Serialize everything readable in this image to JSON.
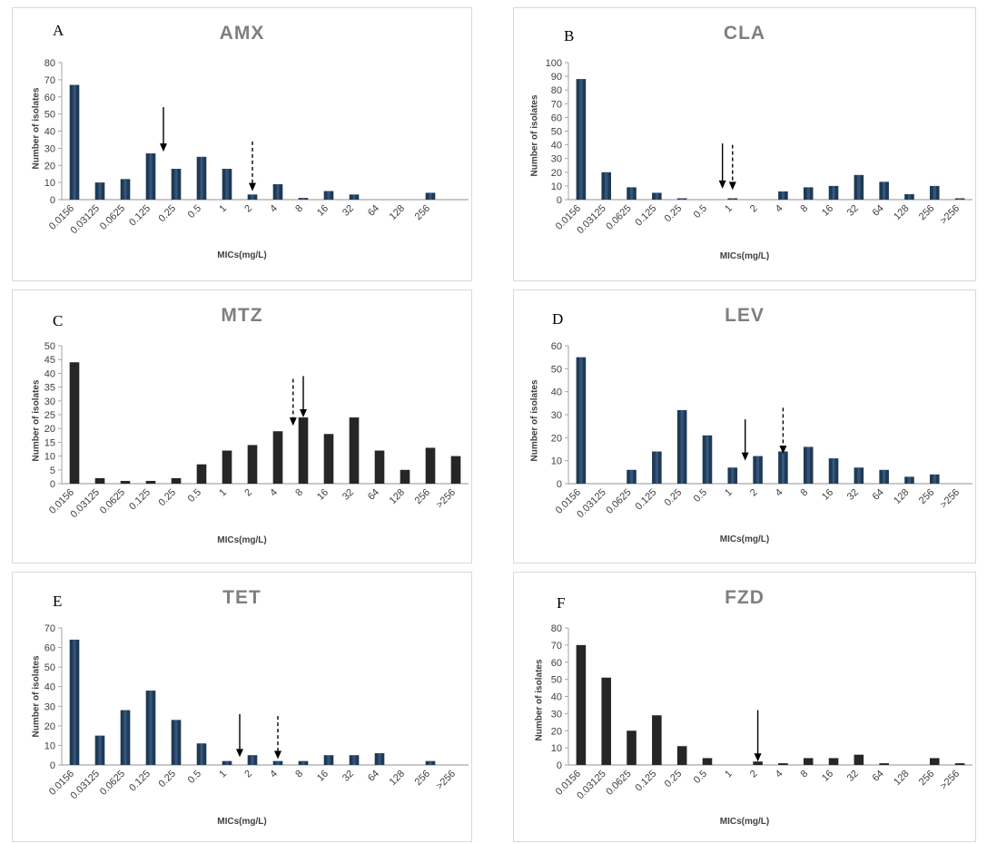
{
  "colors": {
    "bar_fill": "#1f3a56",
    "bar_highlight": "#4e7aa7",
    "bar_dark": "#262626",
    "axis": "#a6a6a6",
    "title": "#7f7f7f",
    "text": "#404040",
    "arrow": "#000000"
  },
  "chart_data": [
    {
      "letter": "A",
      "title": "AMX",
      "type": "bar",
      "xlabel": "MICs(mg/L)",
      "ylabel": "Number of isolates",
      "ylim": [
        0,
        80
      ],
      "ystep": 10,
      "bar_style": "blue",
      "categories": [
        "0.0156",
        "0.03125",
        "0.0625",
        "0.125",
        "0.25",
        "0.5",
        "1",
        "2",
        "4",
        "8",
        "16",
        "32",
        "64",
        "128",
        "256"
      ],
      "values": [
        67,
        10,
        12,
        27,
        18,
        25,
        18,
        3,
        9,
        1,
        5,
        3,
        0,
        0,
        4
      ],
      "arrows": [
        {
          "style": "solid",
          "at": 3.5,
          "from": 54,
          "to": 28
        },
        {
          "style": "dashed",
          "at": 7,
          "from": 34,
          "to": 5
        }
      ]
    },
    {
      "letter": "B",
      "title": "CLA",
      "type": "bar",
      "xlabel": "MICs(mg/L)",
      "ylabel": "Number of isolates",
      "ylim": [
        0,
        100
      ],
      "ystep": 10,
      "bar_style": "blue",
      "categories": [
        "0.0156",
        "0.03125",
        "0.0625",
        "0.125",
        "0.25",
        "0.5",
        "1",
        "2",
        "4",
        "8",
        "16",
        "32",
        "64",
        "128",
        "256",
        ">256"
      ],
      "values": [
        88,
        20,
        9,
        5,
        1,
        0,
        1,
        0,
        6,
        9,
        10,
        18,
        13,
        4,
        10,
        1
      ],
      "arrows": [
        {
          "style": "solid",
          "at": 5.6,
          "from": 41,
          "to": 8
        },
        {
          "style": "dashed",
          "at": 6,
          "from": 40,
          "to": 7
        }
      ]
    },
    {
      "letter": "C",
      "title": "MTZ",
      "type": "bar",
      "xlabel": "MICs(mg/L)",
      "ylabel": "Number of isolates",
      "ylim": [
        0,
        50
      ],
      "ystep": 5,
      "bar_style": "dark",
      "categories": [
        "0.0156",
        "0.03125",
        "0.0625",
        "0.125",
        "0.25",
        "0.5",
        "1",
        "2",
        "4",
        "8",
        "16",
        "32",
        "64",
        "128",
        "256",
        ">256"
      ],
      "values": [
        44,
        2,
        1,
        1,
        2,
        7,
        12,
        14,
        19,
        24,
        18,
        24,
        12,
        5,
        13,
        10
      ],
      "arrows": [
        {
          "style": "dashed",
          "at": 8.6,
          "from": 38,
          "to": 21
        },
        {
          "style": "solid",
          "at": 9,
          "from": 39,
          "to": 24
        }
      ]
    },
    {
      "letter": "D",
      "title": "LEV",
      "type": "bar",
      "xlabel": "MICs(mg/L)",
      "ylabel": "Number of isolates",
      "ylim": [
        0,
        60
      ],
      "ystep": 10,
      "bar_style": "blue",
      "categories": [
        "0.0156",
        "0.03125",
        "0.0625",
        "0.125",
        "0.25",
        "0.5",
        "1",
        "2",
        "4",
        "8",
        "16",
        "32",
        "64",
        "128",
        "256",
        ">256"
      ],
      "values": [
        55,
        0,
        6,
        14,
        32,
        21,
        7,
        12,
        14,
        16,
        11,
        7,
        6,
        3,
        4,
        0
      ],
      "arrows": [
        {
          "style": "solid",
          "at": 6.5,
          "from": 28,
          "to": 10
        },
        {
          "style": "dashed",
          "at": 8,
          "from": 33,
          "to": 13
        }
      ]
    },
    {
      "letter": "E",
      "title": "TET",
      "type": "bar",
      "xlabel": "MICs(mg/L)",
      "ylabel": "Number of isolates",
      "ylim": [
        0,
        70
      ],
      "ystep": 10,
      "bar_style": "blue",
      "categories": [
        "0.0156",
        "0.03125",
        "0.0625",
        "0.125",
        "0.25",
        "0.5",
        "1",
        "2",
        "4",
        "8",
        "16",
        "32",
        "64",
        "128",
        "256",
        ">256"
      ],
      "values": [
        64,
        15,
        28,
        38,
        23,
        11,
        2,
        5,
        2,
        2,
        5,
        5,
        6,
        0,
        2,
        0
      ],
      "arrows": [
        {
          "style": "solid",
          "at": 6.5,
          "from": 26,
          "to": 4
        },
        {
          "style": "dashed",
          "at": 8,
          "from": 25,
          "to": 3
        }
      ]
    },
    {
      "letter": "F",
      "title": "FZD",
      "type": "bar",
      "xlabel": "MICs(mg/L)",
      "ylabel": "Number of isolates",
      "ylim": [
        0,
        80
      ],
      "ystep": 10,
      "bar_style": "dark",
      "categories": [
        "0.0156",
        "0.03125",
        "0.0625",
        "0.125",
        "0.25",
        "0.5",
        "1",
        "2",
        "4",
        "8",
        "16",
        "32",
        "64",
        "128",
        "256",
        ">256"
      ],
      "values": [
        70,
        51,
        20,
        29,
        11,
        4,
        0,
        2,
        1,
        4,
        4,
        6,
        1,
        0,
        4,
        1
      ],
      "arrows": [
        {
          "style": "solid",
          "at": 7,
          "from": 32,
          "to": 2
        }
      ]
    }
  ]
}
